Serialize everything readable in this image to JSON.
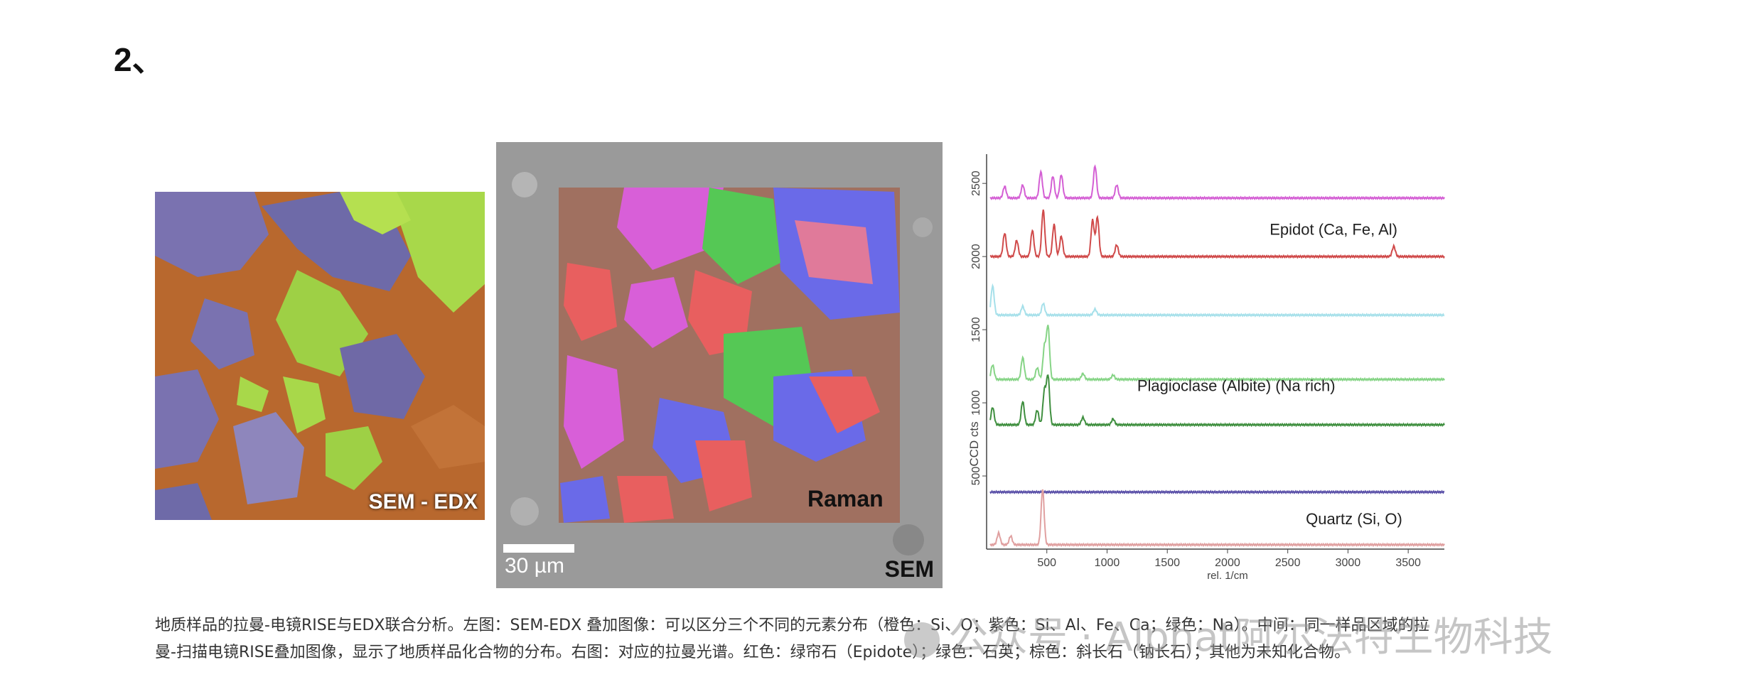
{
  "heading": "2、",
  "panels": {
    "sem_edx": {
      "label": "SEM - EDX"
    },
    "raman_sem": {
      "raman_label": "Raman",
      "sem_label": "SEM",
      "scale_bar": "30 µm"
    }
  },
  "chart_data": {
    "type": "line",
    "ylabel": "CCD cts",
    "xlabel": "rel. 1/cm",
    "xlim": [
      0,
      3800
    ],
    "ylim": [
      0,
      2700
    ],
    "x_ticks": [
      500,
      1000,
      1500,
      2000,
      2500,
      3000,
      3500
    ],
    "y_ticks": [
      500,
      1000,
      1500,
      2000,
      2500
    ],
    "annotations": [
      {
        "text": "Epidot   (Ca, Fe, Al)",
        "x": 2350,
        "y": 2150
      },
      {
        "text": "Plagioclase (Albite) (Na rich)",
        "x": 1250,
        "y": 1080
      },
      {
        "text": "Quartz  (Si, O)",
        "x": 2650,
        "y": 170
      }
    ],
    "series": [
      {
        "color": "#d45fd4",
        "baseline": 2400,
        "peaks": [
          [
            150,
            80
          ],
          [
            300,
            90
          ],
          [
            450,
            180
          ],
          [
            550,
            150
          ],
          [
            620,
            160
          ],
          [
            900,
            220
          ],
          [
            1080,
            90
          ]
        ]
      },
      {
        "color": "#d04a4a",
        "baseline": 2000,
        "peaks": [
          [
            150,
            160
          ],
          [
            250,
            110
          ],
          [
            380,
            180
          ],
          [
            470,
            320
          ],
          [
            560,
            220
          ],
          [
            620,
            140
          ],
          [
            880,
            250
          ],
          [
            920,
            270
          ],
          [
            1080,
            80
          ],
          [
            3380,
            70
          ]
        ]
      },
      {
        "color": "#a6e0ea",
        "baseline": 1600,
        "peaks": [
          [
            50,
            200
          ],
          [
            300,
            60
          ],
          [
            470,
            80
          ],
          [
            900,
            40
          ]
        ]
      },
      {
        "color": "#86d486",
        "baseline": 1160,
        "peaks": [
          [
            50,
            100
          ],
          [
            300,
            150
          ],
          [
            420,
            80
          ],
          [
            480,
            220
          ],
          [
            510,
            360
          ],
          [
            800,
            40
          ],
          [
            1050,
            30
          ]
        ]
      },
      {
        "color": "#3f8f3f",
        "baseline": 850,
        "peaks": [
          [
            50,
            120
          ],
          [
            300,
            160
          ],
          [
            420,
            100
          ],
          [
            480,
            230
          ],
          [
            510,
            330
          ],
          [
            800,
            50
          ],
          [
            1050,
            40
          ]
        ]
      },
      {
        "color": "#5a50a8",
        "baseline": 390,
        "peaks": []
      },
      {
        "color": "#e0a0a0",
        "baseline": 30,
        "peaks": [
          [
            100,
            80
          ],
          [
            200,
            60
          ],
          [
            465,
            380
          ]
        ]
      }
    ]
  },
  "caption": {
    "line1": "地质样品的拉曼-电镜RISE与EDX联合分析。左图：SEM-EDX 叠加图像：可以区分三个不同的元素分布（橙色：Si、O；紫色：Si、Al、Fe、Ca；绿色：Na）。中间：同一样品区域的拉",
    "line2": "曼-扫描电镜RISE叠加图像，显示了地质样品化合物的分布。右图：对应的拉曼光谱。红色：绿帘石（Epidote）；绿色：石英；棕色：斜长石（钠长石）；其他为未知化合物。"
  },
  "watermark": "公众号 · Alphat阿尔法特生物科技"
}
